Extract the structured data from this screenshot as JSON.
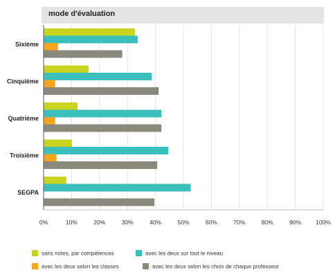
{
  "header": {
    "title": "mode d'évaluation"
  },
  "chart_data": {
    "type": "bar",
    "orientation": "horizontal",
    "categories": [
      "Sixième",
      "Cinquième",
      "Quatrième",
      "Troisième",
      "SEGPA"
    ],
    "series": [
      {
        "name": "sans notes, par compétences",
        "color": "#c9d420",
        "values": [
          32.5,
          16,
          12,
          10,
          8
        ]
      },
      {
        "name": "avec les deux sur tout le niveau",
        "color": "#3bbfbc",
        "values": [
          33.5,
          38.5,
          42,
          44.5,
          52.5
        ]
      },
      {
        "name": "avec les deux selon les classes",
        "color": "#f5a51d",
        "values": [
          5,
          4,
          4,
          4.5,
          0
        ]
      },
      {
        "name": "avec les deux selon les choix de chaque professeur",
        "color": "#8a897c",
        "values": [
          28,
          41,
          42,
          40.5,
          39.5
        ]
      }
    ],
    "xlim": [
      0,
      100
    ],
    "xticks": [
      "0%",
      "10%",
      "20%",
      "30%",
      "40%",
      "50%",
      "60%",
      "70%",
      "80%",
      "90%",
      "100%"
    ],
    "grid": true,
    "legend_position": "bottom"
  }
}
